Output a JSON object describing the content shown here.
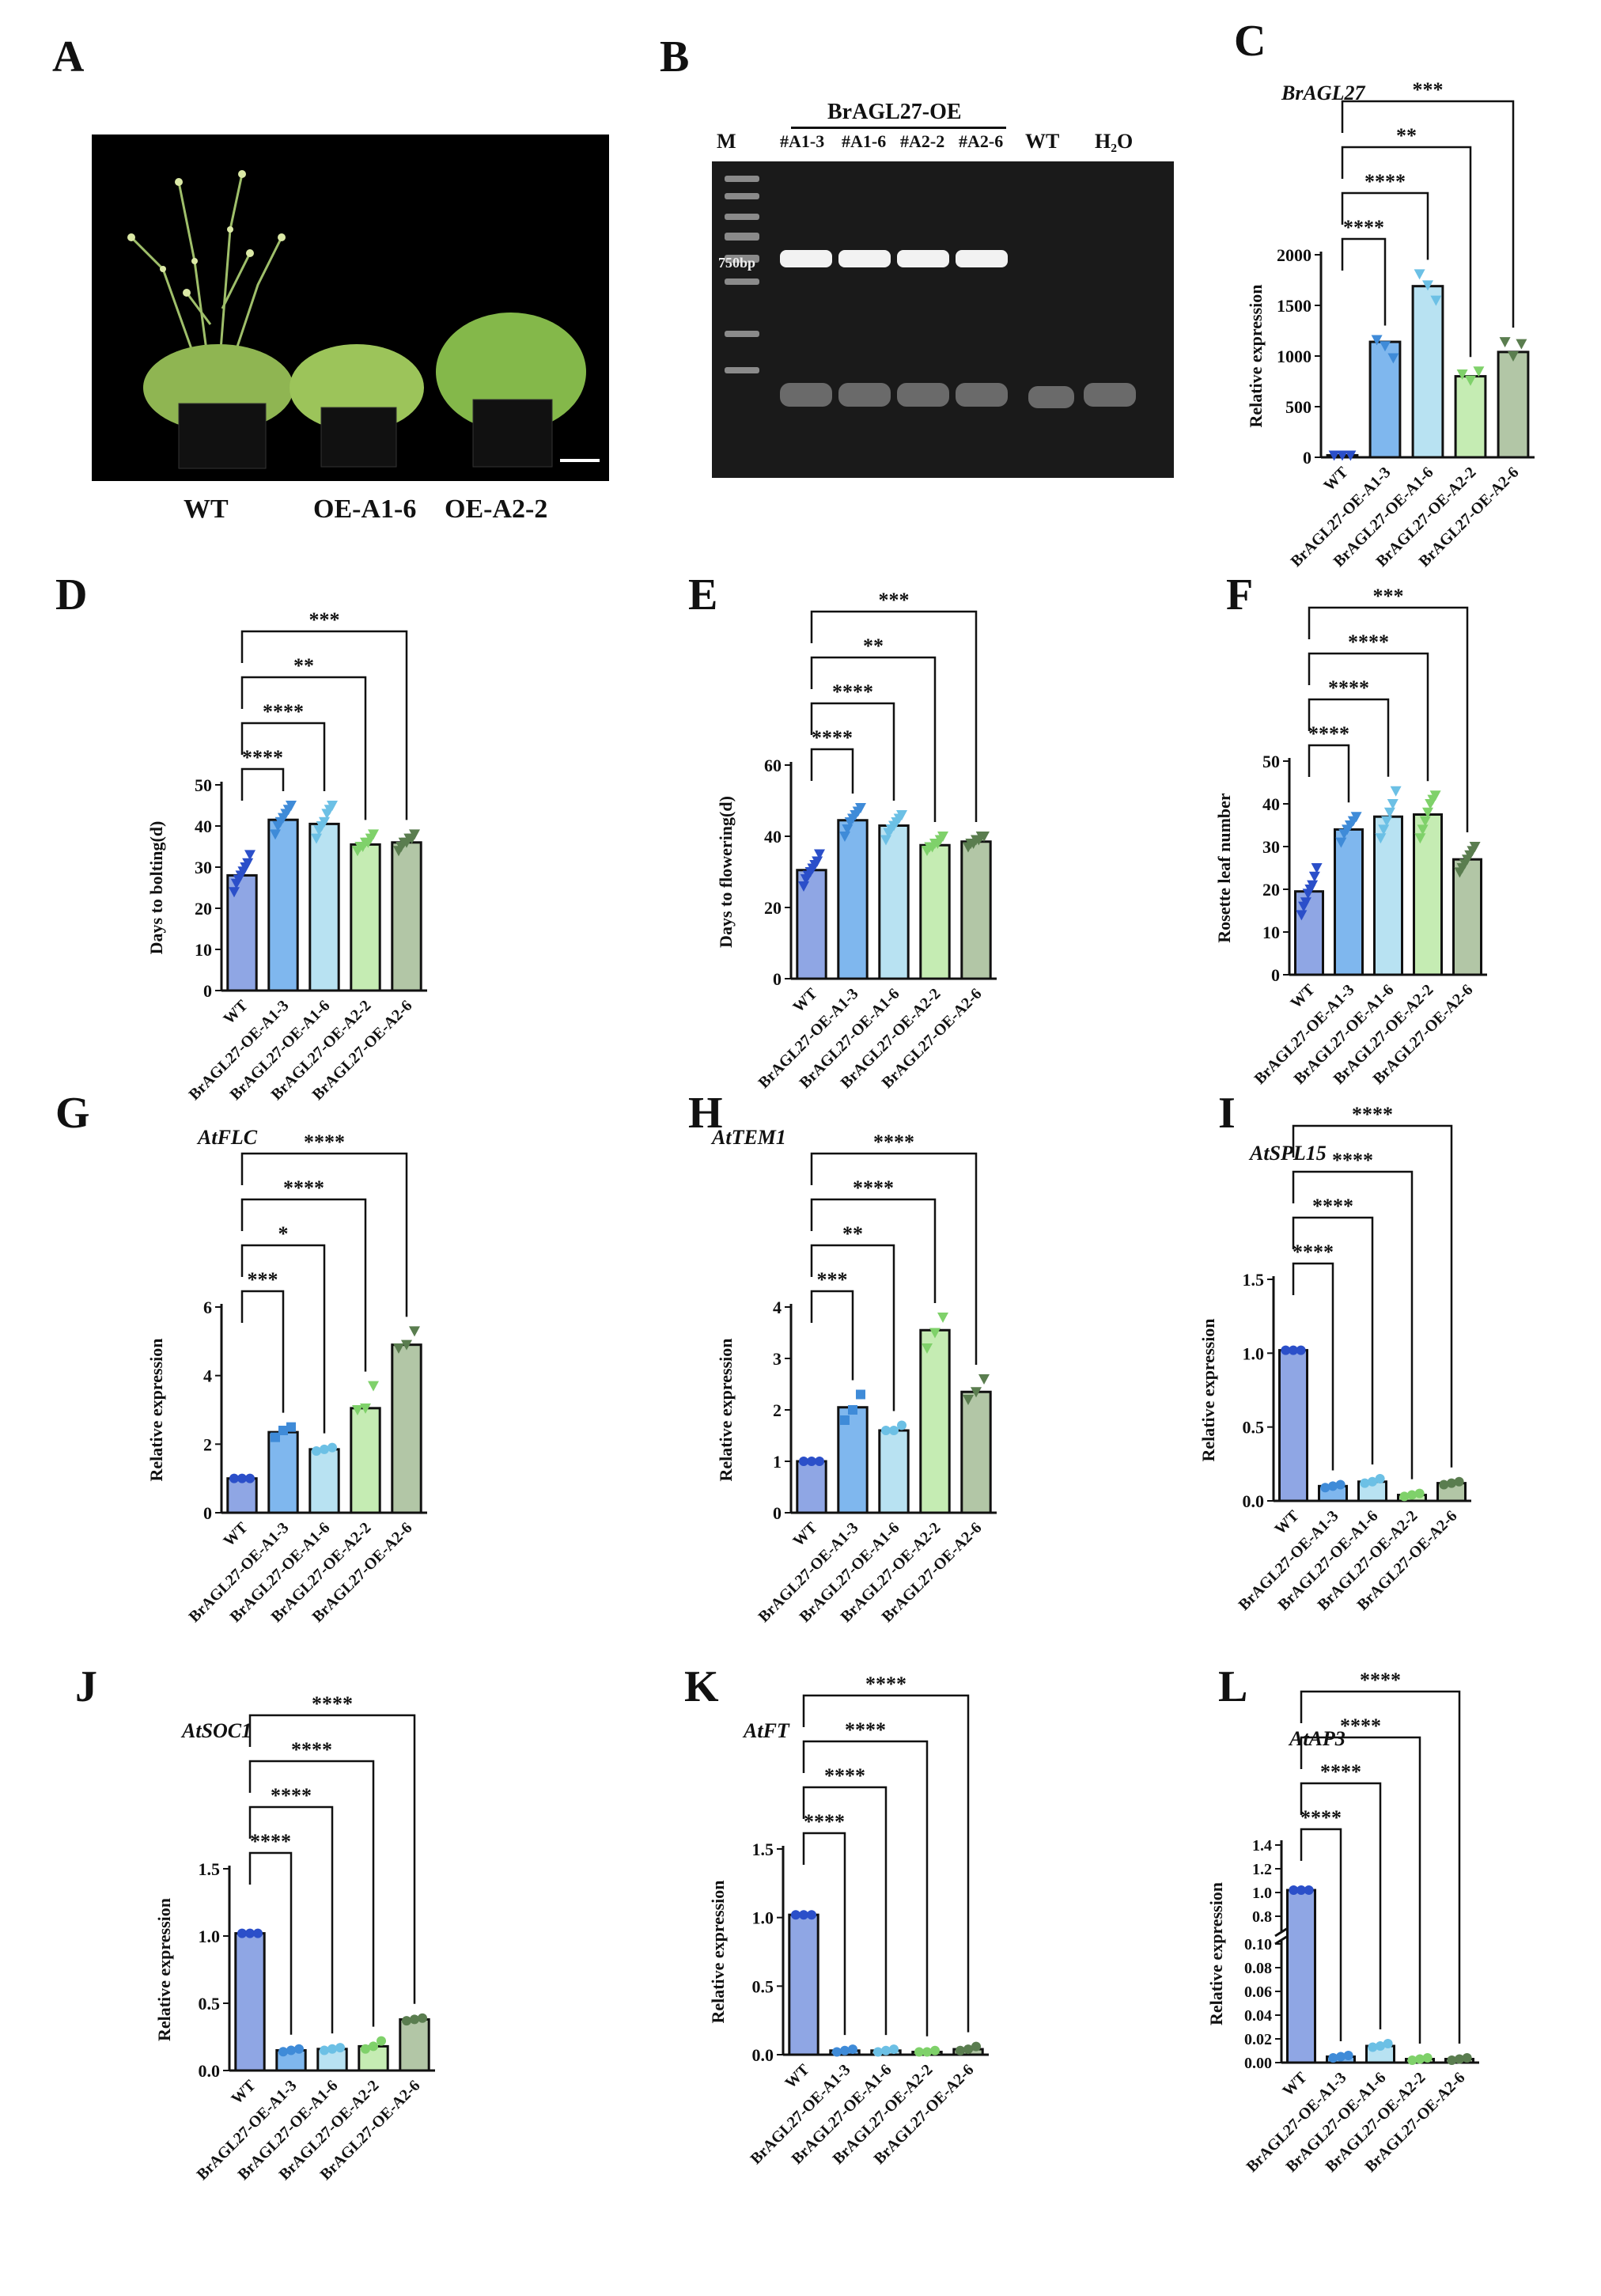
{
  "panels": {
    "A": {
      "letter": "A",
      "labels": [
        "WT",
        "OE-A1-6",
        "OE-A2-2"
      ]
    },
    "B": {
      "letter": "B",
      "header": "BrAGL27-OE",
      "lanes": [
        "M",
        "#A1-3",
        "#A1-6",
        "#A2-2",
        "#A2-6",
        "WT",
        "H₂O"
      ],
      "marker": "750bp"
    }
  },
  "categories": [
    "WT",
    "BrAGL27-OE-A1-3",
    "BrAGL27-OE-A1-6",
    "BrAGL27-OE-A2-2",
    "BrAGL27-OE-A2-6"
  ],
  "colors": {
    "bars": [
      "#8fa6e4",
      "#7fb7ee",
      "#b8e2f2",
      "#c5ecb3",
      "#b2c6a6"
    ],
    "points": [
      "#2b4fc9",
      "#3f8bd8",
      "#6cc0e5",
      "#7fd16a",
      "#5a7d4f"
    ]
  },
  "chart_data": [
    {
      "id": "C",
      "type": "bar",
      "title": "BrAGL27",
      "ylabel": "Relative expression",
      "ylim": [
        0,
        2000
      ],
      "yticks": [
        "0",
        "500",
        "1000",
        "1500",
        "2000"
      ],
      "yticknums": [
        0,
        500,
        1000,
        1500,
        2000
      ],
      "values": [
        20,
        1140,
        1690,
        800,
        1040
      ],
      "points": [
        [
          20,
          20,
          20
        ],
        [
          1160,
          1100,
          980
        ],
        [
          1810,
          1700,
          1550
        ],
        [
          820,
          760,
          850
        ],
        [
          1140,
          1000,
          1120
        ]
      ],
      "marker": "tri",
      "sig": [
        "****",
        "****",
        "**",
        "***"
      ]
    },
    {
      "id": "D",
      "type": "bar",
      "title": "",
      "ylabel": "Days to bolting(d)",
      "ylim": [
        0,
        50
      ],
      "yticks": [
        "0",
        "10",
        "20",
        "30",
        "40",
        "50"
      ],
      "yticknums": [
        0,
        10,
        20,
        30,
        40,
        50
      ],
      "values": [
        28,
        41.5,
        40.5,
        35.5,
        36
      ],
      "points": [
        [
          24,
          26,
          27,
          28,
          29,
          30,
          31,
          33
        ],
        [
          38,
          40,
          41,
          42,
          43,
          44,
          45
        ],
        [
          37,
          39,
          40,
          41,
          43,
          44,
          45
        ],
        [
          34,
          35,
          35,
          36,
          36,
          37,
          38
        ],
        [
          34,
          35,
          36,
          36,
          37,
          37,
          38
        ]
      ],
      "marker": "tri",
      "sig": [
        "****",
        "****",
        "**",
        "***"
      ]
    },
    {
      "id": "E",
      "type": "bar",
      "title": "",
      "ylabel": "Days to flowering(d)",
      "ylim": [
        0,
        60
      ],
      "yticks": [
        "0",
        "20",
        "40",
        "60"
      ],
      "yticknums": [
        0,
        20,
        40,
        60
      ],
      "values": [
        30.5,
        44.5,
        43,
        37.5,
        38.5
      ],
      "points": [
        [
          26,
          28,
          29,
          30,
          31,
          32,
          33,
          35
        ],
        [
          40,
          42,
          44,
          45,
          46,
          47,
          48
        ],
        [
          39,
          41,
          42,
          43,
          44,
          45,
          46
        ],
        [
          36,
          37,
          37,
          38,
          38,
          39,
          40
        ],
        [
          37,
          38,
          38,
          39,
          39,
          40,
          40
        ]
      ],
      "marker": "tri",
      "sig": [
        "****",
        "****",
        "**",
        "***"
      ]
    },
    {
      "id": "F",
      "type": "bar",
      "title": "",
      "ylabel": "Rosette leaf number",
      "ylim": [
        0,
        50
      ],
      "yticks": [
        "0",
        "10",
        "20",
        "30",
        "40",
        "50"
      ],
      "yticknums": [
        0,
        10,
        20,
        30,
        40,
        50
      ],
      "values": [
        19.5,
        34,
        37,
        37.5,
        27
      ],
      "points": [
        [
          14,
          16,
          17,
          19,
          20,
          21,
          23,
          25
        ],
        [
          31,
          33,
          34,
          35,
          36,
          37
        ],
        [
          32,
          34,
          36,
          38,
          40,
          43
        ],
        [
          32,
          34,
          36,
          38,
          40,
          41,
          42
        ],
        [
          24,
          25,
          26,
          27,
          28,
          29,
          30
        ]
      ],
      "marker": "tri",
      "sig": [
        "****",
        "****",
        "****",
        "***"
      ]
    },
    {
      "id": "G",
      "type": "bar",
      "title": "AtFLC",
      "ylabel": "Relative expression",
      "ylim": [
        0,
        6
      ],
      "yticks": [
        "0",
        "2",
        "4",
        "6"
      ],
      "yticknums": [
        0,
        2,
        4,
        6
      ],
      "values": [
        1.0,
        2.35,
        1.85,
        3.05,
        4.9
      ],
      "points": [
        [
          1.0,
          1.0,
          1.0
        ],
        [
          2.2,
          2.4,
          2.5
        ],
        [
          1.8,
          1.85,
          1.9
        ],
        [
          3.0,
          3.05,
          3.7
        ],
        [
          4.8,
          4.9,
          5.3
        ]
      ],
      "marker": "mixed",
      "sig": [
        "***",
        "*",
        "****",
        "****"
      ]
    },
    {
      "id": "H",
      "type": "bar",
      "title": "AtTEM1",
      "ylabel": "Relative expression",
      "ylim": [
        0,
        4
      ],
      "yticks": [
        "0",
        "1",
        "2",
        "3",
        "4"
      ],
      "yticknums": [
        0,
        1,
        2,
        3,
        4
      ],
      "values": [
        1.0,
        2.05,
        1.6,
        3.55,
        2.35
      ],
      "points": [
        [
          1.0,
          1.0,
          1.0
        ],
        [
          1.8,
          2.0,
          2.3
        ],
        [
          1.6,
          1.6,
          1.7
        ],
        [
          3.2,
          3.5,
          3.8
        ],
        [
          2.2,
          2.35,
          2.6
        ]
      ],
      "marker": "mixed",
      "sig": [
        "***",
        "**",
        "****",
        "****"
      ]
    },
    {
      "id": "I",
      "type": "bar",
      "title": "AtSPL15",
      "ylabel": "Relative expression",
      "ylim": [
        0,
        1.5
      ],
      "yticks": [
        "0.0",
        "0.5",
        "1.0",
        "1.5"
      ],
      "yticknums": [
        0,
        0.5,
        1.0,
        1.5
      ],
      "values": [
        1.02,
        0.1,
        0.13,
        0.04,
        0.12
      ],
      "points": [
        [
          1.02,
          1.02,
          1.02
        ],
        [
          0.09,
          0.1,
          0.11
        ],
        [
          0.12,
          0.13,
          0.15
        ],
        [
          0.03,
          0.04,
          0.05
        ],
        [
          0.11,
          0.12,
          0.13
        ]
      ],
      "marker": "circle",
      "sig": [
        "****",
        "****",
        "****",
        "****"
      ]
    },
    {
      "id": "J",
      "type": "bar",
      "title": "AtSOC1",
      "ylabel": "Relative expression",
      "ylim": [
        0,
        1.5
      ],
      "yticks": [
        "0.0",
        "0.5",
        "1.0",
        "1.5"
      ],
      "yticknums": [
        0,
        0.5,
        1.0,
        1.5
      ],
      "values": [
        1.02,
        0.15,
        0.16,
        0.18,
        0.38
      ],
      "points": [
        [
          1.02,
          1.02,
          1.02
        ],
        [
          0.14,
          0.15,
          0.16
        ],
        [
          0.15,
          0.16,
          0.17
        ],
        [
          0.16,
          0.18,
          0.22
        ],
        [
          0.37,
          0.38,
          0.39
        ]
      ],
      "marker": "circle",
      "sig": [
        "****",
        "****",
        "****",
        "****"
      ]
    },
    {
      "id": "K",
      "type": "bar",
      "title": "AtFT",
      "ylabel": "Relative expression",
      "ylim": [
        0,
        1.5
      ],
      "yticks": [
        "0.0",
        "0.5",
        "1.0",
        "1.5"
      ],
      "yticknums": [
        0,
        0.5,
        1.0,
        1.5
      ],
      "values": [
        1.02,
        0.03,
        0.03,
        0.02,
        0.04
      ],
      "points": [
        [
          1.02,
          1.02,
          1.02
        ],
        [
          0.02,
          0.03,
          0.04
        ],
        [
          0.02,
          0.03,
          0.04
        ],
        [
          0.02,
          0.02,
          0.03
        ],
        [
          0.03,
          0.04,
          0.06
        ]
      ],
      "marker": "circle",
      "sig": [
        "****",
        "****",
        "****",
        "****"
      ]
    },
    {
      "id": "L",
      "type": "bar",
      "title": "AtAP3",
      "ylabel": "Relative expression",
      "broken": true,
      "yticks": [
        "0.00",
        "0.02",
        "0.04",
        "0.06",
        "0.08",
        "0.10",
        "0.8",
        "1.0",
        "1.2",
        "1.4"
      ],
      "values": [
        1.02,
        0.005,
        0.014,
        0.003,
        0.003
      ],
      "points": [
        [
          1.02,
          1.02,
          1.02
        ],
        [
          0.004,
          0.005,
          0.006
        ],
        [
          0.013,
          0.014,
          0.016
        ],
        [
          0.002,
          0.003,
          0.004
        ],
        [
          0.002,
          0.003,
          0.004
        ]
      ],
      "marker": "circle",
      "sig": [
        "****",
        "****",
        "****",
        "****"
      ]
    }
  ]
}
